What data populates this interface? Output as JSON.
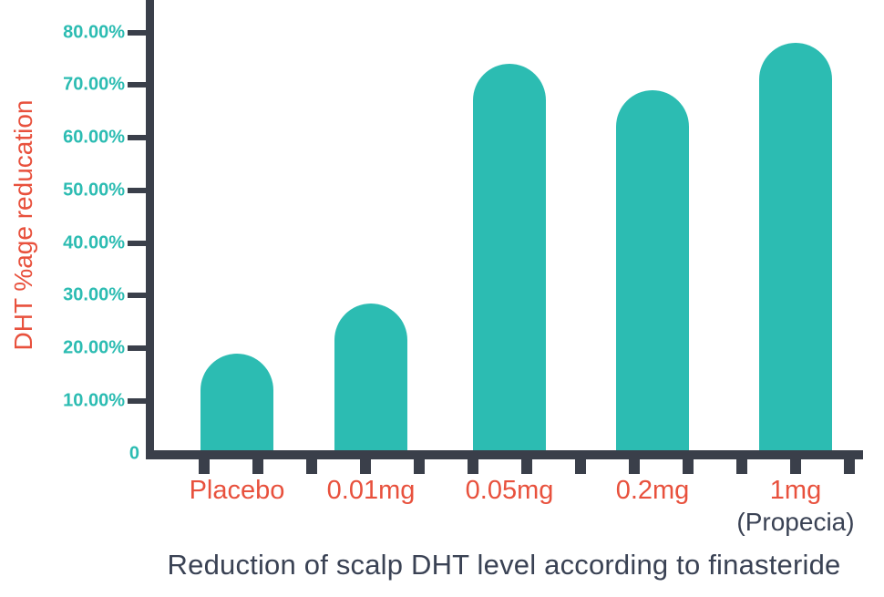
{
  "chart_data": {
    "type": "bar",
    "caption": "Reduction of scalp DHT level according to finasteride",
    "ylabel": "DHT %age reducation",
    "categories": [
      "Placebo",
      "0.01mg",
      "0.05mg",
      "0.2mg",
      "1mg"
    ],
    "category_sublabels": [
      "",
      "",
      "",
      "",
      "(Propecia)"
    ],
    "values": [
      19,
      28.5,
      74,
      69,
      78
    ],
    "unit": "percent",
    "ylim": [
      0,
      80
    ],
    "y_ticks": [
      {
        "value": 0,
        "label": "0",
        "mark": false
      },
      {
        "value": 10,
        "label": "10.00%",
        "mark": true
      },
      {
        "value": 20,
        "label": "20.00%",
        "mark": true
      },
      {
        "value": 30,
        "label": "30.00%",
        "mark": true
      },
      {
        "value": 40,
        "label": "40.00%",
        "mark": true
      },
      {
        "value": 50,
        "label": "50.00%",
        "mark": true
      },
      {
        "value": 60,
        "label": "60.00%",
        "mark": true
      },
      {
        "value": 70,
        "label": "70.00%",
        "mark": true
      },
      {
        "value": 80,
        "label": "80.00%",
        "mark": true
      }
    ],
    "grid": false,
    "legend": null,
    "colors": {
      "bar": "#2CBCB2",
      "y_tick_label": "#2CBCB2",
      "category_label": "#E8513D",
      "ylabel": "#E8513D",
      "axis": "#3A3F4A",
      "caption": "#3A4254",
      "sublabel": "#3A4254",
      "background": "#FFFFFF"
    }
  }
}
